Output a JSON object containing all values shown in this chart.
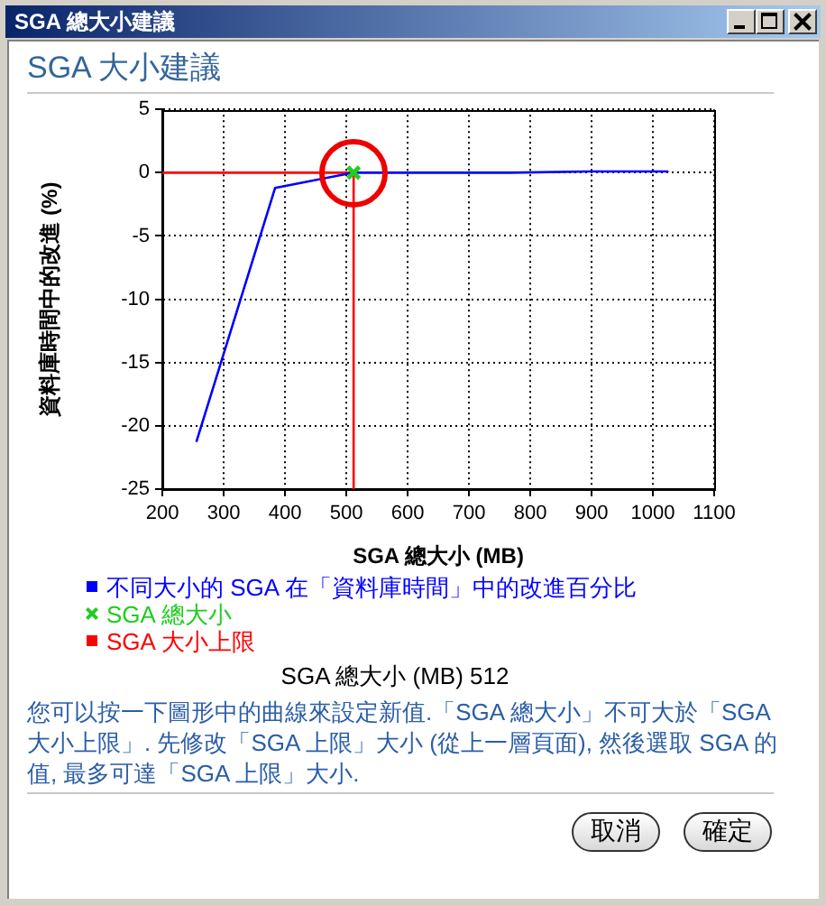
{
  "chart_data": {
    "type": "line",
    "title": "SGA 大小建議",
    "xlabel": "SGA 總大小 (MB)",
    "ylabel": "資料庫時間中的改進 (%)",
    "series": [
      {
        "name": "不同大小的 SGA 在「資料庫時間」中的改進百分比",
        "color": "#0000ff",
        "x": [
          256,
          384,
          512,
          640,
          768,
          896,
          1024
        ],
        "values": [
          -21.2,
          -1.2,
          0,
          0,
          0,
          0.1,
          0.1
        ]
      },
      {
        "name": "SGA 總大小",
        "type": "scatter",
        "marker": "cross",
        "color": "#22cc22",
        "x": [
          512
        ],
        "values": [
          0
        ]
      },
      {
        "name": "SGA 大小上限",
        "color": "#ff0000",
        "x": [
          200,
          512,
          512
        ],
        "values": [
          0,
          0,
          -25
        ]
      }
    ],
    "xlim": [
      200,
      1100
    ],
    "xticks": [
      200,
      300,
      400,
      500,
      600,
      700,
      800,
      900,
      1000,
      1100
    ],
    "ylim": [
      -25,
      5
    ],
    "yticks": [
      -25,
      -20,
      -15,
      -10,
      -5,
      0,
      5
    ],
    "grid": true,
    "legend": "bottom",
    "marker": "none",
    "annotations": [
      "SGA 總大小建議",
      "SGA 總大小 (MB) 512",
      "您可以按一下圖形中的曲線來設定新值.「SGA 總大小」不可大於「SGA 大小上限」. 先修改「SGA 上限」大小 (從上一層頁面), 然後選取 SGA 的值, 最多可達「SGA 上限」大小.",
      "取消",
      "確定"
    ]
  }
}
